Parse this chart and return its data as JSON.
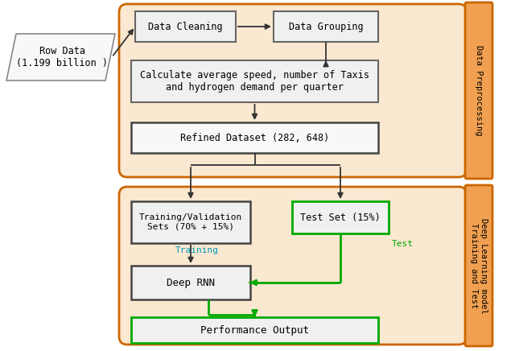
{
  "bg_color": "#ffffff",
  "orange_border": "#CC6600",
  "orange_fill": "#F0A050",
  "light_orange_fill": "#FAE8D0",
  "box_fill": "#f0f0f0",
  "box_border": "#555555",
  "green_border": "#00AA00",
  "arrow_color": "#333333",
  "cyan_text": "#0099BB",
  "green_text": "#00AA00",
  "text_color": "#000000",
  "title_top": "Data Preprocessing",
  "title_bottom": "Deep Learning model\nTraining and Test",
  "node_row_data": "Row Data\n(1.199 billion )",
  "node_cleaning": "Data Cleaning",
  "node_grouping": "Data Grouping",
  "node_calculate": "Calculate average speed, number of Taxis\nand hydrogen demand per quarter",
  "node_refined": "Refined Dataset (282, 648)",
  "node_train_val": "Training/Validation\nSets (70% + 15%)",
  "node_test_set": "Test Set (15%)",
  "node_deep_rnn": "Deep RNN",
  "node_perf_out": "Performance Output",
  "label_training": "Training",
  "label_test": "Test"
}
